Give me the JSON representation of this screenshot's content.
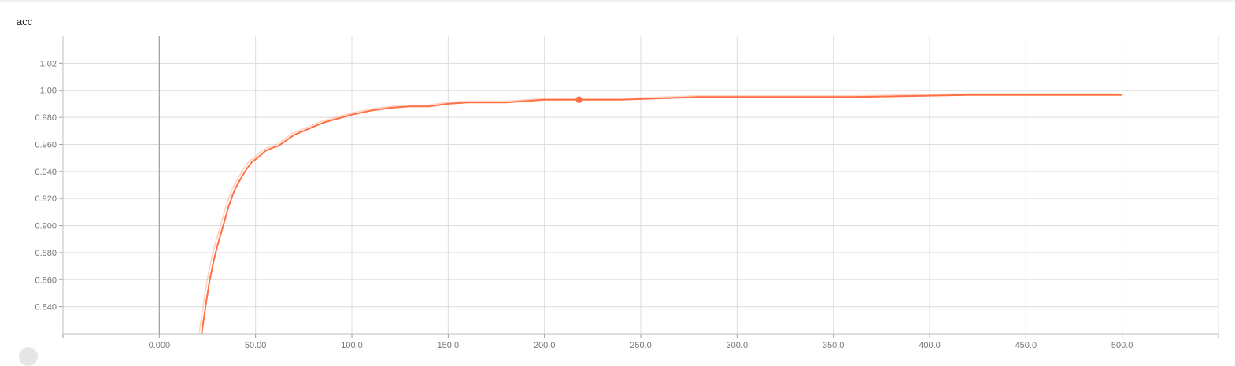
{
  "chart_title": "acc",
  "chart_data": {
    "type": "line",
    "title": "acc",
    "xlabel": "",
    "ylabel": "",
    "xlim": [
      -50,
      550
    ],
    "ylim": [
      0.82,
      1.04
    ],
    "x_ticks": [
      "0.000",
      "50.00",
      "100.0",
      "150.0",
      "200.0",
      "250.0",
      "300.0",
      "350.0",
      "400.0",
      "450.0",
      "500.0"
    ],
    "y_ticks": [
      "0.840",
      "0.860",
      "0.880",
      "0.900",
      "0.920",
      "0.940",
      "0.960",
      "0.980",
      "1.00",
      "1.02"
    ],
    "grid": true,
    "highlight_point": {
      "x": 218,
      "y": 0.993
    },
    "series": [
      {
        "color": "#ff7043",
        "x": [
          22,
          24,
          26,
          28,
          30,
          33,
          36,
          39,
          42,
          45,
          48,
          51,
          55,
          58,
          62,
          66,
          70,
          75,
          80,
          85,
          90,
          95,
          100,
          110,
          120,
          130,
          140,
          150,
          160,
          170,
          180,
          190,
          200,
          210,
          220,
          230,
          240,
          250,
          260,
          270,
          280,
          290,
          300,
          320,
          340,
          360,
          380,
          400,
          420,
          450,
          480,
          500
        ],
        "y": [
          0.82,
          0.84,
          0.858,
          0.872,
          0.884,
          0.899,
          0.914,
          0.926,
          0.934,
          0.941,
          0.947,
          0.95,
          0.955,
          0.957,
          0.959,
          0.963,
          0.967,
          0.97,
          0.973,
          0.976,
          0.978,
          0.98,
          0.982,
          0.985,
          0.987,
          0.988,
          0.988,
          0.99,
          0.991,
          0.991,
          0.991,
          0.992,
          0.993,
          0.993,
          0.993,
          0.993,
          0.993,
          0.9935,
          0.994,
          0.9945,
          0.995,
          0.995,
          0.995,
          0.995,
          0.995,
          0.995,
          0.9955,
          0.996,
          0.9965,
          0.9965,
          0.9965,
          0.9965
        ]
      }
    ]
  }
}
